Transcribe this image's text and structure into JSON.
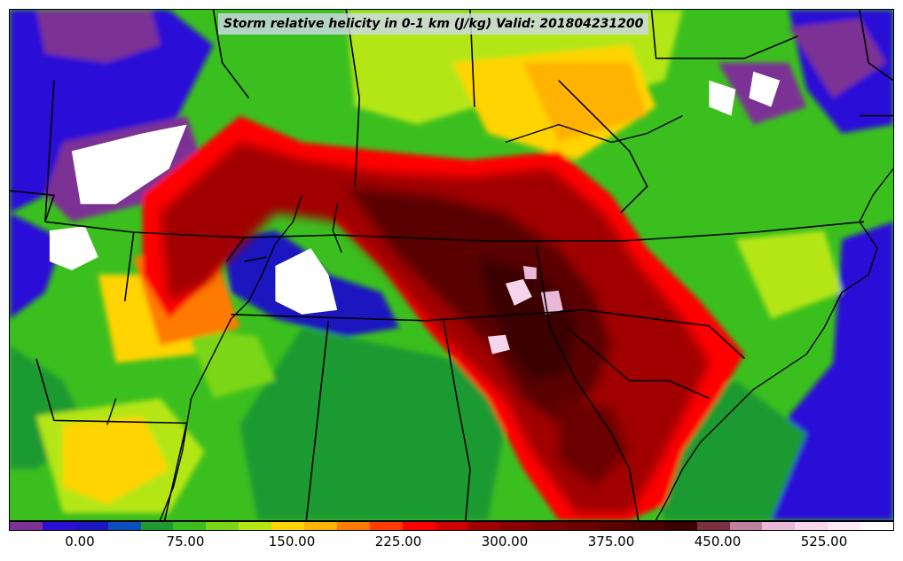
{
  "title": "Storm relative helicity in 0-1 km (J/kg) Valid: 201804231200",
  "colorbar": {
    "colors": [
      "#7b3294",
      "#2a0fd6",
      "#1a17c0",
      "#0b4fbf",
      "#1f9a32",
      "#3bbf1f",
      "#7ad617",
      "#b4e613",
      "#ffd400",
      "#ffb300",
      "#ff7a00",
      "#ff3c00",
      "#ff0000",
      "#d00000",
      "#a00000",
      "#8a0000",
      "#7a0000",
      "#6c0000",
      "#5a0000",
      "#4a0000",
      "#3a0000",
      "#7a3040",
      "#c080a0",
      "#e8b8d8",
      "#f5d4ec",
      "#ffe8f8",
      "#ffffff"
    ],
    "ticks": [
      "0.00",
      "75.00",
      "150.00",
      "225.00",
      "300.00",
      "375.00",
      "450.00",
      "525.00"
    ]
  }
}
